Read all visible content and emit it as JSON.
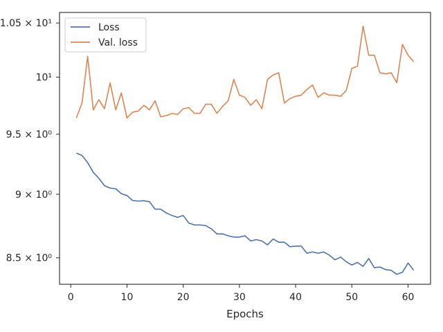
{
  "chart_data": {
    "type": "line",
    "title": "",
    "xlabel": "Epochs",
    "ylabel": "",
    "y_scale": "log",
    "xlim": [
      -2,
      64
    ],
    "ylim": [
      8.3,
      10.6
    ],
    "grid": false,
    "legend_position": "top-left",
    "x_ticks": [
      0,
      10,
      20,
      30,
      40,
      50,
      60
    ],
    "x_tick_labels": [
      "0",
      "10",
      "20",
      "30",
      "40",
      "50",
      "60"
    ],
    "y_ticks": [
      8.5,
      9.0,
      9.5,
      10.0,
      10.5
    ],
    "y_tick_labels": [
      "8.5 × 10⁰",
      "9 × 10⁰",
      "9.5 × 10⁰",
      "10¹",
      "1.05 × 10¹"
    ],
    "x": [
      1,
      2,
      3,
      4,
      5,
      6,
      7,
      8,
      9,
      10,
      11,
      12,
      13,
      14,
      15,
      16,
      17,
      18,
      19,
      20,
      21,
      22,
      23,
      24,
      25,
      26,
      27,
      28,
      29,
      30,
      31,
      32,
      33,
      34,
      35,
      36,
      37,
      38,
      39,
      40,
      41,
      42,
      43,
      44,
      45,
      46,
      47,
      48,
      49,
      50,
      51,
      52,
      53,
      54,
      55,
      56,
      57,
      58,
      59,
      60,
      61
    ],
    "series": [
      {
        "name": "Loss",
        "color": "#4c72b0",
        "values": [
          9.34,
          9.32,
          9.26,
          9.18,
          9.13,
          9.07,
          9.05,
          9.045,
          9.005,
          8.99,
          8.95,
          8.945,
          8.948,
          8.94,
          8.88,
          8.88,
          8.85,
          8.83,
          8.815,
          8.83,
          8.77,
          8.755,
          8.755,
          8.75,
          8.725,
          8.685,
          8.685,
          8.67,
          8.66,
          8.66,
          8.67,
          8.63,
          8.64,
          8.63,
          8.6,
          8.645,
          8.62,
          8.62,
          8.585,
          8.59,
          8.59,
          8.535,
          8.545,
          8.535,
          8.545,
          8.52,
          8.485,
          8.505,
          8.47,
          8.445,
          8.465,
          8.435,
          8.495,
          8.425,
          8.43,
          8.41,
          8.405,
          8.375,
          8.39,
          8.46,
          8.405
        ]
      },
      {
        "name": "Val. loss",
        "color": "#dd8452",
        "values": [
          9.64,
          9.77,
          10.19,
          9.71,
          9.8,
          9.72,
          9.95,
          9.71,
          9.86,
          9.64,
          9.69,
          9.7,
          9.75,
          9.71,
          9.79,
          9.65,
          9.66,
          9.68,
          9.67,
          9.72,
          9.73,
          9.68,
          9.68,
          9.76,
          9.76,
          9.68,
          9.74,
          9.79,
          9.98,
          9.84,
          9.82,
          9.75,
          9.8,
          9.72,
          9.98,
          10.02,
          10.04,
          9.77,
          9.81,
          9.83,
          9.84,
          9.89,
          9.93,
          9.82,
          9.86,
          9.84,
          9.84,
          9.83,
          9.88,
          10.08,
          10.1,
          10.47,
          10.2,
          10.2,
          10.04,
          10.03,
          10.04,
          9.95,
          10.3,
          10.2,
          10.14
        ]
      }
    ]
  }
}
